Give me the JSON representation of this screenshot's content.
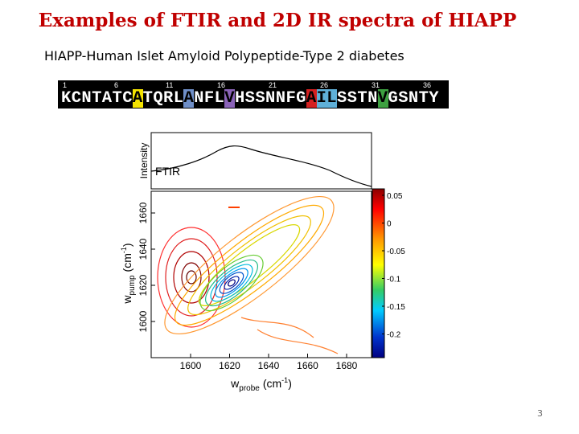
{
  "title": "Examples of FTIR and  2D IR spectra of HIAPP",
  "subtitle": "HIAPP-Human Islet Amyloid Polypeptide-Type 2 diabetes",
  "sequence": {
    "numbers": [
      "1",
      "6",
      "11",
      "16",
      "21",
      "26",
      "31",
      "36"
    ],
    "segments": [
      {
        "text": "KCNTATC"
      },
      {
        "text": "A",
        "color": "#f5e400"
      },
      {
        "text": "TQRL"
      },
      {
        "text": "A",
        "color": "#6f8fc8"
      },
      {
        "text": "NFL"
      },
      {
        "text": "V",
        "color": "#8a63b8"
      },
      {
        "text": "HSSNNFG"
      },
      {
        "text": "A",
        "color": "#d42020"
      },
      {
        "text": "IL",
        "color": "#5fb0d8"
      },
      {
        "text": "SSTN"
      },
      {
        "text": "V",
        "color": "#3da040"
      },
      {
        "text": "GSNTY"
      }
    ]
  },
  "figure": {
    "ftir_label": "FTIR",
    "intensity_label": "Intensity",
    "y_label": {
      "symbol": "w",
      "subscript": "pump",
      "unit": "(cm",
      "exponent": "-1",
      "close": ")"
    },
    "x_label": {
      "symbol": "w",
      "subscript": "probe",
      "unit": "(cm",
      "exponent": "-1",
      "close": ")"
    },
    "xticks": [
      "1600",
      "1620",
      "1640",
      "1660",
      "1680"
    ],
    "yticks": [
      "1660",
      "1640",
      "1620",
      "1600"
    ],
    "colorbar_ticks": [
      "0.05",
      "0",
      "-0.05",
      "-0.1",
      "-0.15",
      "-0.2"
    ]
  },
  "page_number": "3"
}
